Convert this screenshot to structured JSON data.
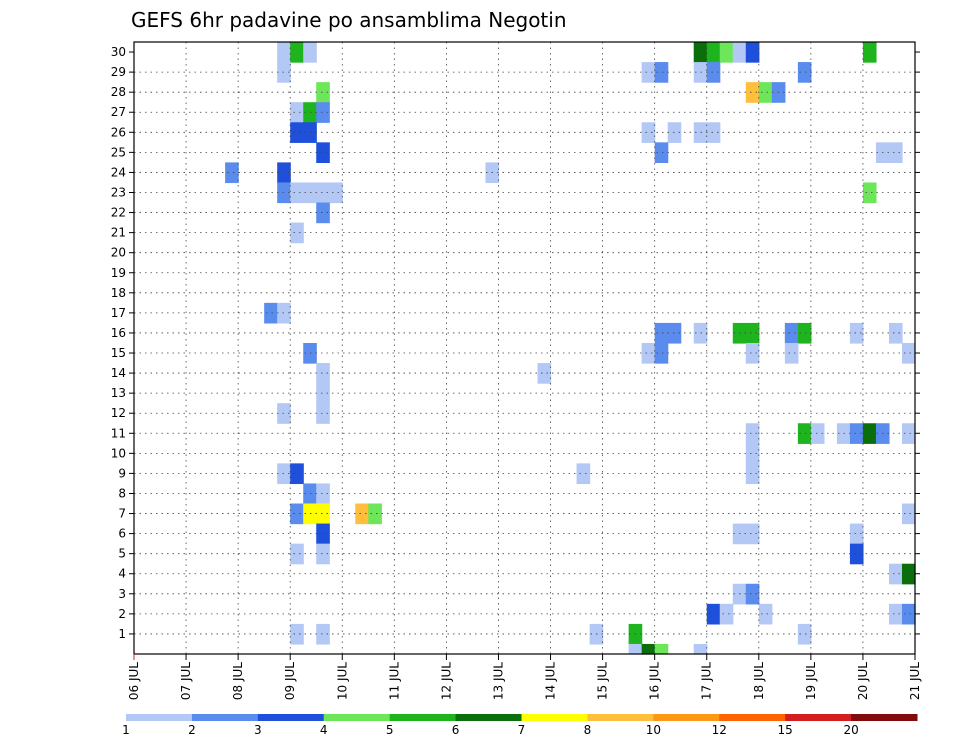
{
  "chart_data": {
    "type": "heatmap",
    "title": "GEFS 6hr padavine po ansamblima Negotin",
    "xlabel": "",
    "ylabel": "",
    "x_ticks": [
      "06 JUL",
      "07 JUL",
      "08 JUL",
      "09 JUL",
      "10 JUL",
      "11 JUL",
      "12 JUL",
      "13 JUL",
      "14 JUL",
      "15 JUL",
      "16 JUL",
      "17 JUL",
      "18 JUL",
      "19 JUL",
      "20 JUL",
      "21 JUL"
    ],
    "y_ticks": [
      "1",
      "2",
      "3",
      "4",
      "5",
      "6",
      "7",
      "8",
      "9",
      "10",
      "11",
      "12",
      "13",
      "14",
      "15",
      "16",
      "17",
      "18",
      "19",
      "20",
      "21",
      "22",
      "23",
      "24",
      "25",
      "26",
      "27",
      "28",
      "29",
      "30"
    ],
    "xlim": [
      0,
      60
    ],
    "ylim": [
      0,
      30
    ],
    "grid": true,
    "legend": {
      "placement": "bottom",
      "labels": [
        "1",
        "2",
        "3",
        "4",
        "5",
        "6",
        "7",
        "8",
        "10",
        "12",
        "15",
        "20"
      ],
      "colors": [
        "#b4c8f5",
        "#5a8cee",
        "#1e50dc",
        "#6ee65a",
        "#1eb41e",
        "#0a6e0a",
        "#ffff00",
        "#ffbe3c",
        "#ff9614",
        "#ff6400",
        "#d21e1e",
        "#820a0a"
      ]
    },
    "cells": [
      [
        11,
        30,
        1
      ],
      [
        12,
        30,
        5
      ],
      [
        13,
        30,
        1
      ],
      [
        43,
        30,
        6
      ],
      [
        44,
        30,
        5
      ],
      [
        45,
        30,
        4
      ],
      [
        46,
        30,
        1
      ],
      [
        47,
        30,
        3
      ],
      [
        56,
        30,
        5
      ],
      [
        11,
        29,
        1
      ],
      [
        39,
        29,
        1
      ],
      [
        40,
        29,
        2
      ],
      [
        43,
        29,
        1
      ],
      [
        44,
        29,
        2
      ],
      [
        51,
        29,
        2
      ],
      [
        14,
        28,
        4
      ],
      [
        47,
        28,
        8
      ],
      [
        48,
        28,
        4
      ],
      [
        49,
        28,
        2
      ],
      [
        12,
        27,
        1
      ],
      [
        13,
        27,
        5
      ],
      [
        14,
        27,
        2
      ],
      [
        12,
        26,
        3
      ],
      [
        13,
        26,
        3
      ],
      [
        39,
        26,
        1
      ],
      [
        41,
        26,
        1
      ],
      [
        43,
        26,
        1
      ],
      [
        44,
        26,
        1
      ],
      [
        14,
        25,
        3
      ],
      [
        40,
        25,
        2
      ],
      [
        57,
        25,
        1
      ],
      [
        58,
        25,
        1
      ],
      [
        7,
        24,
        2
      ],
      [
        11,
        24,
        3
      ],
      [
        27,
        24,
        1
      ],
      [
        11,
        23,
        2
      ],
      [
        12,
        23,
        1
      ],
      [
        13,
        23,
        1
      ],
      [
        14,
        23,
        1
      ],
      [
        15,
        23,
        1
      ],
      [
        56,
        23,
        4
      ],
      [
        14,
        22,
        2
      ],
      [
        12,
        21,
        1
      ],
      [
        10,
        17,
        2
      ],
      [
        11,
        17,
        1
      ],
      [
        40,
        16,
        2
      ],
      [
        41,
        16,
        2
      ],
      [
        43,
        16,
        1
      ],
      [
        46,
        16,
        5
      ],
      [
        47,
        16,
        5
      ],
      [
        50,
        16,
        2
      ],
      [
        51,
        16,
        5
      ],
      [
        55,
        16,
        1
      ],
      [
        58,
        16,
        1
      ],
      [
        13,
        15,
        2
      ],
      [
        39,
        15,
        1
      ],
      [
        40,
        15,
        2
      ],
      [
        47,
        15,
        1
      ],
      [
        50,
        15,
        1
      ],
      [
        59,
        15,
        1
      ],
      [
        14,
        14,
        1
      ],
      [
        31,
        14,
        1
      ],
      [
        14,
        13,
        1
      ],
      [
        11,
        12,
        1
      ],
      [
        14,
        12,
        1
      ],
      [
        47,
        11,
        1
      ],
      [
        51,
        11,
        5
      ],
      [
        52,
        11,
        1
      ],
      [
        54,
        11,
        1
      ],
      [
        55,
        11,
        2
      ],
      [
        56,
        11,
        6
      ],
      [
        57,
        11,
        2
      ],
      [
        59,
        11,
        1
      ],
      [
        47,
        10,
        1
      ],
      [
        11,
        9,
        1
      ],
      [
        12,
        9,
        3
      ],
      [
        34,
        9,
        1
      ],
      [
        47,
        9,
        1
      ],
      [
        13,
        8,
        2
      ],
      [
        14,
        8,
        1
      ],
      [
        12,
        7,
        2
      ],
      [
        13,
        7,
        7
      ],
      [
        14,
        7,
        7
      ],
      [
        17,
        7,
        8
      ],
      [
        18,
        7,
        4
      ],
      [
        59,
        7,
        1
      ],
      [
        14,
        6,
        3
      ],
      [
        46,
        6,
        1
      ],
      [
        47,
        6,
        1
      ],
      [
        55,
        6,
        1
      ],
      [
        12,
        5,
        1
      ],
      [
        14,
        5,
        1
      ],
      [
        55,
        5,
        3
      ],
      [
        58,
        4,
        1
      ],
      [
        59,
        4,
        6
      ],
      [
        46,
        3,
        1
      ],
      [
        47,
        3,
        2
      ],
      [
        44,
        2,
        3
      ],
      [
        45,
        2,
        1
      ],
      [
        48,
        2,
        1
      ],
      [
        58,
        2,
        1
      ],
      [
        59,
        2,
        2
      ],
      [
        12,
        1,
        1
      ],
      [
        14,
        1,
        1
      ],
      [
        35,
        1,
        1
      ],
      [
        38,
        1,
        5
      ],
      [
        51,
        1,
        1
      ],
      [
        38,
        0,
        1
      ],
      [
        39,
        0,
        6
      ],
      [
        40,
        0,
        4
      ],
      [
        43,
        0,
        1
      ]
    ]
  }
}
